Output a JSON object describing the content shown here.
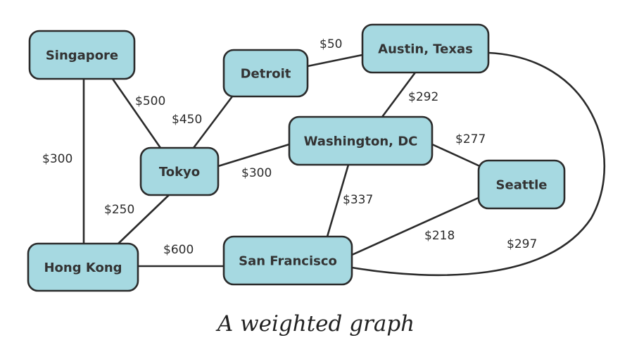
{
  "nodes": {
    "singapore": "Singapore",
    "detroit": "Detroit",
    "austin": "Austin, Texas",
    "washington": "Washington, DC",
    "tokyo": "Tokyo",
    "seattle": "Seattle",
    "hong_kong": "Hong Kong",
    "san_francisco": "San Francisco"
  },
  "edges": {
    "singapore_tokyo": "$500",
    "singapore_hong_kong": "$300",
    "detroit_tokyo": "$450",
    "detroit_austin": "$50",
    "austin_washington": "$292",
    "austin_san_francisco": "$297",
    "tokyo_washington": "$300",
    "tokyo_hong_kong": "$250",
    "washington_seattle": "$277",
    "washington_san_francisco": "$337",
    "seattle_san_francisco": "$218",
    "hong_kong_san_francisco": "$600"
  },
  "caption": "A weighted graph"
}
